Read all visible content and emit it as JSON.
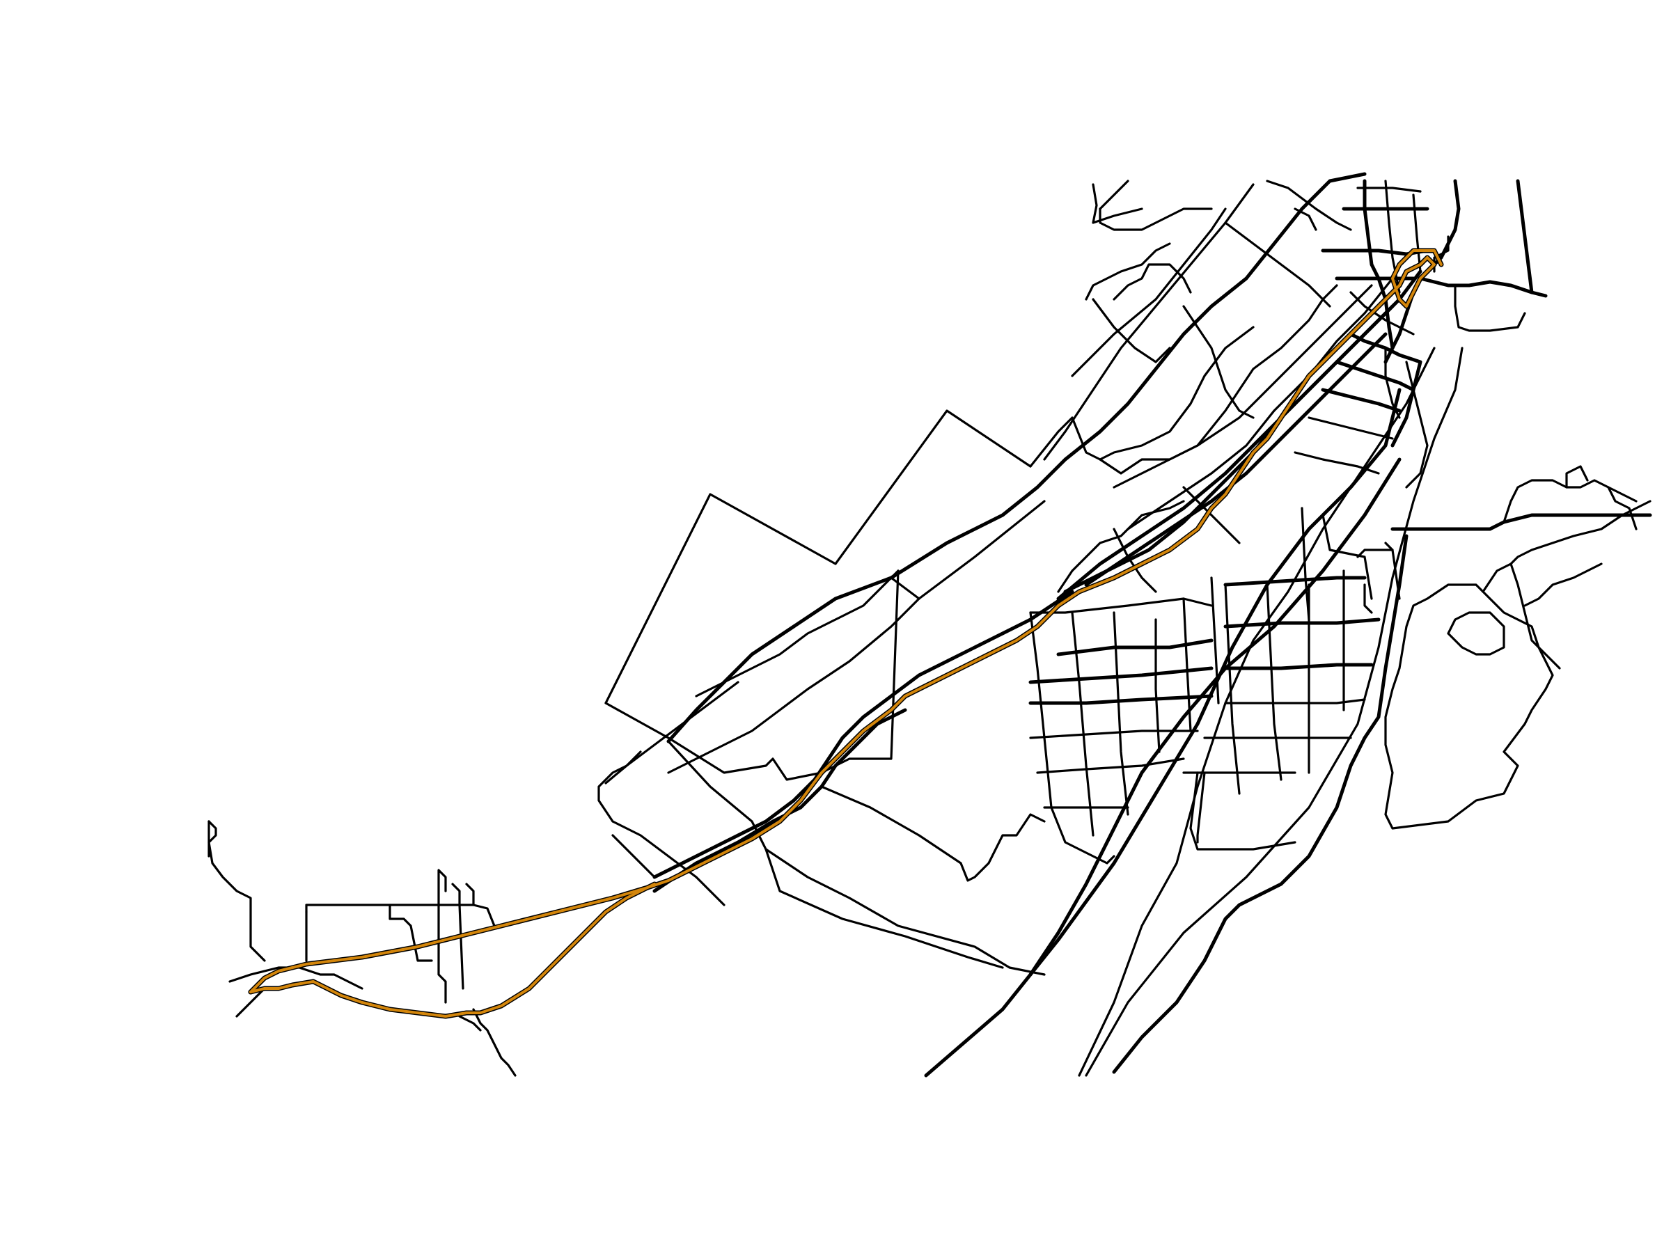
{
  "map": {
    "background_color": "#ffffff",
    "road_color": "#000000",
    "route_color": "#d4860b",
    "route_halo_color": "#000000",
    "layers": [
      "road-network",
      "highlighted-route"
    ]
  }
}
